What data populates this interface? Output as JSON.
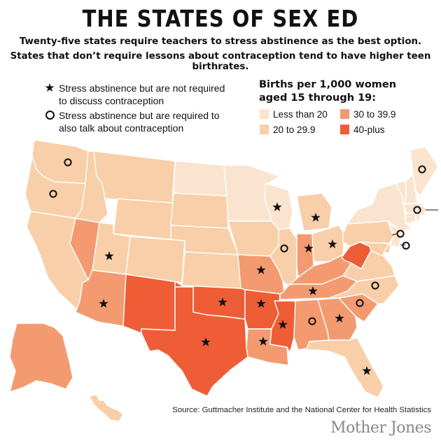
{
  "title": "THE STATES OF SEX ED",
  "subtitle_line1": "Twenty-five states require teachers to stress abstinence as the best option.",
  "subtitle_line2": "States that don’t require lessons about contraception tend to have higher teen birthrates.",
  "symbol_key": {
    "star_label": "Stress abstinence but are not required to discuss contraception",
    "circle_label": "Stress abstinence but are required to also talk about contraception"
  },
  "legend": {
    "title": "Births per 1,000 women aged 15 through 19:",
    "items": [
      {
        "label": "Less than 20",
        "color": "#fbe4cf"
      },
      {
        "label": "20 to 29.9",
        "color": "#f8cfa8"
      },
      {
        "label": "30 to 39.9",
        "color": "#f39a70"
      },
      {
        "label": "40-plus",
        "color": "#ef5d36"
      }
    ]
  },
  "states": [
    {
      "id": "WA",
      "bin": 1,
      "marker": "circle"
    },
    {
      "id": "OR",
      "bin": 1,
      "marker": "circle"
    },
    {
      "id": "CA",
      "bin": 1,
      "marker": "none"
    },
    {
      "id": "NV",
      "bin": 2,
      "marker": "none"
    },
    {
      "id": "ID",
      "bin": 1,
      "marker": "none"
    },
    {
      "id": "MT",
      "bin": 1,
      "marker": "none"
    },
    {
      "id": "WY",
      "bin": 1,
      "marker": "none"
    },
    {
      "id": "UT",
      "bin": 1,
      "marker": "star"
    },
    {
      "id": "AZ",
      "bin": 2,
      "marker": "star"
    },
    {
      "id": "NM",
      "bin": 3,
      "marker": "none"
    },
    {
      "id": "CO",
      "bin": 1,
      "marker": "none"
    },
    {
      "id": "ND",
      "bin": 0,
      "marker": "none"
    },
    {
      "id": "SD",
      "bin": 1,
      "marker": "none"
    },
    {
      "id": "NE",
      "bin": 1,
      "marker": "none"
    },
    {
      "id": "KS",
      "bin": 1,
      "marker": "none"
    },
    {
      "id": "OK",
      "bin": 3,
      "marker": "star"
    },
    {
      "id": "TX",
      "bin": 3,
      "marker": "star"
    },
    {
      "id": "MN",
      "bin": 0,
      "marker": "none"
    },
    {
      "id": "IA",
      "bin": 1,
      "marker": "none"
    },
    {
      "id": "MO",
      "bin": 2,
      "marker": "star"
    },
    {
      "id": "AR",
      "bin": 3,
      "marker": "star"
    },
    {
      "id": "LA",
      "bin": 2,
      "marker": "star"
    },
    {
      "id": "WI",
      "bin": 0,
      "marker": "star"
    },
    {
      "id": "IL",
      "bin": 1,
      "marker": "circle"
    },
    {
      "id": "MI",
      "bin": 1,
      "marker": "star"
    },
    {
      "id": "IN",
      "bin": 2,
      "marker": "star"
    },
    {
      "id": "OH",
      "bin": 1,
      "marker": "star"
    },
    {
      "id": "KY",
      "bin": 2,
      "marker": "none"
    },
    {
      "id": "TN",
      "bin": 2,
      "marker": "star"
    },
    {
      "id": "MS",
      "bin": 3,
      "marker": "star"
    },
    {
      "id": "AL",
      "bin": 2,
      "marker": "circle"
    },
    {
      "id": "GA",
      "bin": 2,
      "marker": "star"
    },
    {
      "id": "FL",
      "bin": 1,
      "marker": "star"
    },
    {
      "id": "SC",
      "bin": 2,
      "marker": "circle"
    },
    {
      "id": "NC",
      "bin": 1,
      "marker": "circle"
    },
    {
      "id": "VA",
      "bin": 1,
      "marker": "none"
    },
    {
      "id": "WV",
      "bin": 3,
      "marker": "none"
    },
    {
      "id": "PA",
      "bin": 1,
      "marker": "none"
    },
    {
      "id": "NY",
      "bin": 0,
      "marker": "none"
    },
    {
      "id": "NJ",
      "bin": 0,
      "marker": "circle"
    },
    {
      "id": "DE",
      "bin": 1,
      "marker": "circle"
    },
    {
      "id": "MD",
      "bin": 1,
      "marker": "none"
    },
    {
      "id": "VT",
      "bin": 0,
      "marker": "none"
    },
    {
      "id": "NH",
      "bin": 0,
      "marker": "none"
    },
    {
      "id": "ME",
      "bin": 0,
      "marker": "circle"
    },
    {
      "id": "MA",
      "bin": 0,
      "marker": "circle"
    },
    {
      "id": "CT",
      "bin": 0,
      "marker": "none"
    },
    {
      "id": "RI",
      "bin": 0,
      "marker": "none"
    },
    {
      "id": "AK",
      "bin": 2,
      "marker": "none"
    },
    {
      "id": "HI",
      "bin": 1,
      "marker": "none"
    }
  ],
  "source": "Source: Guttmacher Institute and the National Center for Health Statistics",
  "brand": "Mother Jones"
}
